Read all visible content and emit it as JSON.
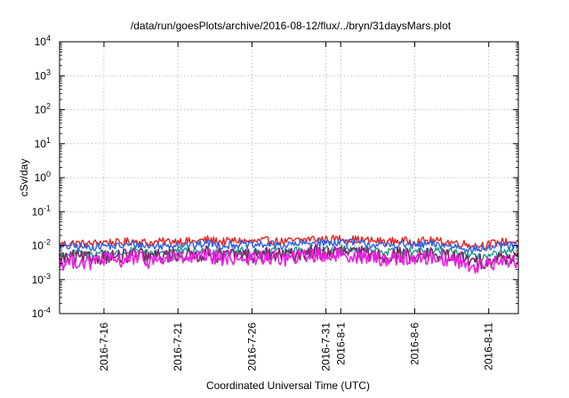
{
  "chart_data": {
    "type": "line",
    "title": "/data/run/goesPlots/archive/2016-08-12/flux/../bryn/31daysMars.plot",
    "xlabel": "Coordinated Universal Time (UTC)",
    "ylabel": "cSv/day",
    "y_scale": "log",
    "ylim": [
      0.0001,
      10000
    ],
    "y_ticks": [
      {
        "value": 0.0001,
        "base": "10",
        "exp": "-4"
      },
      {
        "value": 0.001,
        "base": "10",
        "exp": "-3"
      },
      {
        "value": 0.01,
        "base": "10",
        "exp": "-2"
      },
      {
        "value": 0.1,
        "base": "10",
        "exp": "-1"
      },
      {
        "value": 1,
        "base": "10",
        "exp": "0"
      },
      {
        "value": 10,
        "base": "10",
        "exp": "1"
      },
      {
        "value": 100,
        "base": "10",
        "exp": "2"
      },
      {
        "value": 1000,
        "base": "10",
        "exp": "3"
      },
      {
        "value": 10000,
        "base": "10",
        "exp": "4"
      }
    ],
    "xlim": [
      "2016-07-13",
      "2016-08-13"
    ],
    "x_ticks": [
      {
        "value": "2016-07-16",
        "label": "2016-7-16"
      },
      {
        "value": "2016-07-21",
        "label": "2016-7-21"
      },
      {
        "value": "2016-07-26",
        "label": "2016-7-26"
      },
      {
        "value": "2016-07-31",
        "label": "2016-7-31"
      },
      {
        "value": "2016-08-01",
        "label": "2016-8-1"
      },
      {
        "value": "2016-08-06",
        "label": "2016-8-6"
      },
      {
        "value": "2016-08-11",
        "label": "2016-8-11"
      }
    ],
    "grid": true,
    "series": [
      {
        "color": "#e8221c",
        "points": [
          [
            "2016-07-13",
            0.011
          ],
          [
            "2016-07-14",
            0.012
          ],
          [
            "2016-07-15",
            0.011
          ],
          [
            "2016-07-16",
            0.013
          ],
          [
            "2016-07-17",
            0.012
          ],
          [
            "2016-07-18",
            0.014
          ],
          [
            "2016-07-19",
            0.012
          ],
          [
            "2016-07-20",
            0.013
          ],
          [
            "2016-07-21",
            0.014
          ],
          [
            "2016-07-22",
            0.013
          ],
          [
            "2016-07-23",
            0.015
          ],
          [
            "2016-07-24",
            0.013
          ],
          [
            "2016-07-25",
            0.014
          ],
          [
            "2016-07-26",
            0.013
          ],
          [
            "2016-07-27",
            0.014
          ],
          [
            "2016-07-28",
            0.013
          ],
          [
            "2016-07-29",
            0.014
          ],
          [
            "2016-07-30",
            0.016
          ],
          [
            "2016-07-31",
            0.015
          ],
          [
            "2016-08-01",
            0.016
          ],
          [
            "2016-08-02",
            0.015
          ],
          [
            "2016-08-03",
            0.014
          ],
          [
            "2016-08-04",
            0.013
          ],
          [
            "2016-08-05",
            0.014
          ],
          [
            "2016-08-06",
            0.013
          ],
          [
            "2016-08-07",
            0.014
          ],
          [
            "2016-08-08",
            0.013
          ],
          [
            "2016-08-09",
            0.012
          ],
          [
            "2016-08-10",
            0.01
          ],
          [
            "2016-08-11",
            0.011
          ],
          [
            "2016-08-12",
            0.013
          ],
          [
            "2016-08-13",
            0.013
          ]
        ]
      },
      {
        "color": "#2a62e8",
        "points": [
          [
            "2016-07-13",
            0.009
          ],
          [
            "2016-07-14",
            0.0095
          ],
          [
            "2016-07-15",
            0.009
          ],
          [
            "2016-07-16",
            0.01
          ],
          [
            "2016-07-17",
            0.0095
          ],
          [
            "2016-07-18",
            0.011
          ],
          [
            "2016-07-19",
            0.0095
          ],
          [
            "2016-07-20",
            0.01
          ],
          [
            "2016-07-21",
            0.011
          ],
          [
            "2016-07-22",
            0.01
          ],
          [
            "2016-07-23",
            0.012
          ],
          [
            "2016-07-24",
            0.01
          ],
          [
            "2016-07-25",
            0.011
          ],
          [
            "2016-07-26",
            0.01
          ],
          [
            "2016-07-27",
            0.011
          ],
          [
            "2016-07-28",
            0.01
          ],
          [
            "2016-07-29",
            0.011
          ],
          [
            "2016-07-30",
            0.012
          ],
          [
            "2016-07-31",
            0.012
          ],
          [
            "2016-08-01",
            0.013
          ],
          [
            "2016-08-02",
            0.012
          ],
          [
            "2016-08-03",
            0.011
          ],
          [
            "2016-08-04",
            0.01
          ],
          [
            "2016-08-05",
            0.011
          ],
          [
            "2016-08-06",
            0.01
          ],
          [
            "2016-08-07",
            0.011
          ],
          [
            "2016-08-08",
            0.01
          ],
          [
            "2016-08-09",
            0.0095
          ],
          [
            "2016-08-10",
            0.0075
          ],
          [
            "2016-08-11",
            0.0085
          ],
          [
            "2016-08-12",
            0.01
          ],
          [
            "2016-08-13",
            0.01
          ]
        ]
      },
      {
        "color": "#1d9a8a",
        "points": [
          [
            "2016-07-13",
            0.0055
          ],
          [
            "2016-07-14",
            0.006
          ],
          [
            "2016-07-15",
            0.0055
          ],
          [
            "2016-07-16",
            0.0065
          ],
          [
            "2016-07-17",
            0.006
          ],
          [
            "2016-07-18",
            0.007
          ],
          [
            "2016-07-19",
            0.006
          ],
          [
            "2016-07-20",
            0.0065
          ],
          [
            "2016-07-21",
            0.007
          ],
          [
            "2016-07-22",
            0.0065
          ],
          [
            "2016-07-23",
            0.0075
          ],
          [
            "2016-07-24",
            0.0065
          ],
          [
            "2016-07-25",
            0.007
          ],
          [
            "2016-07-26",
            0.0065
          ],
          [
            "2016-07-27",
            0.007
          ],
          [
            "2016-07-28",
            0.0065
          ],
          [
            "2016-07-29",
            0.007
          ],
          [
            "2016-07-30",
            0.008
          ],
          [
            "2016-07-31",
            0.0075
          ],
          [
            "2016-08-01",
            0.008
          ],
          [
            "2016-08-02",
            0.0075
          ],
          [
            "2016-08-03",
            0.007
          ],
          [
            "2016-08-04",
            0.0065
          ],
          [
            "2016-08-05",
            0.007
          ],
          [
            "2016-08-06",
            0.0065
          ],
          [
            "2016-08-07",
            0.007
          ],
          [
            "2016-08-08",
            0.0065
          ],
          [
            "2016-08-09",
            0.006
          ],
          [
            "2016-08-10",
            0.0045
          ],
          [
            "2016-08-11",
            0.005
          ],
          [
            "2016-08-12",
            0.006
          ],
          [
            "2016-08-13",
            0.0062
          ]
        ]
      },
      {
        "color": "#7a2a6a",
        "points": [
          [
            "2016-07-13",
            0.004
          ],
          [
            "2016-07-14",
            0.0045
          ],
          [
            "2016-07-15",
            0.004
          ],
          [
            "2016-07-16",
            0.005
          ],
          [
            "2016-07-17",
            0.0045
          ],
          [
            "2016-07-18",
            0.0055
          ],
          [
            "2016-07-19",
            0.0045
          ],
          [
            "2016-07-20",
            0.005
          ],
          [
            "2016-07-21",
            0.0055
          ],
          [
            "2016-07-22",
            0.005
          ],
          [
            "2016-07-23",
            0.006
          ],
          [
            "2016-07-24",
            0.005
          ],
          [
            "2016-07-25",
            0.0055
          ],
          [
            "2016-07-26",
            0.005
          ],
          [
            "2016-07-27",
            0.0055
          ],
          [
            "2016-07-28",
            0.005
          ],
          [
            "2016-07-29",
            0.0055
          ],
          [
            "2016-07-30",
            0.0065
          ],
          [
            "2016-07-31",
            0.006
          ],
          [
            "2016-08-01",
            0.0065
          ],
          [
            "2016-08-02",
            0.006
          ],
          [
            "2016-08-03",
            0.0055
          ],
          [
            "2016-08-04",
            0.005
          ],
          [
            "2016-08-05",
            0.0055
          ],
          [
            "2016-08-06",
            0.005
          ],
          [
            "2016-08-07",
            0.0055
          ],
          [
            "2016-08-08",
            0.005
          ],
          [
            "2016-08-09",
            0.0045
          ],
          [
            "2016-08-10",
            0.0032
          ],
          [
            "2016-08-11",
            0.0036
          ],
          [
            "2016-08-12",
            0.0045
          ],
          [
            "2016-08-13",
            0.0046
          ]
        ]
      },
      {
        "color": "#ee1ce4",
        "points": [
          [
            "2016-07-13",
            0.003
          ],
          [
            "2016-07-14",
            0.0035
          ],
          [
            "2016-07-15",
            0.003
          ],
          [
            "2016-07-16",
            0.004
          ],
          [
            "2016-07-17",
            0.0035
          ],
          [
            "2016-07-18",
            0.0045
          ],
          [
            "2016-07-19",
            0.0035
          ],
          [
            "2016-07-20",
            0.004
          ],
          [
            "2016-07-21",
            0.0045
          ],
          [
            "2016-07-22",
            0.004
          ],
          [
            "2016-07-23",
            0.005
          ],
          [
            "2016-07-24",
            0.004
          ],
          [
            "2016-07-25",
            0.0045
          ],
          [
            "2016-07-26",
            0.004
          ],
          [
            "2016-07-27",
            0.0045
          ],
          [
            "2016-07-28",
            0.004
          ],
          [
            "2016-07-29",
            0.0045
          ],
          [
            "2016-07-30",
            0.0055
          ],
          [
            "2016-07-31",
            0.005
          ],
          [
            "2016-08-01",
            0.0055
          ],
          [
            "2016-08-02",
            0.005
          ],
          [
            "2016-08-03",
            0.0045
          ],
          [
            "2016-08-04",
            0.004
          ],
          [
            "2016-08-05",
            0.0045
          ],
          [
            "2016-08-06",
            0.004
          ],
          [
            "2016-08-07",
            0.0045
          ],
          [
            "2016-08-08",
            0.004
          ],
          [
            "2016-08-09",
            0.0035
          ],
          [
            "2016-08-10",
            0.0024
          ],
          [
            "2016-08-11",
            0.0028
          ],
          [
            "2016-08-12",
            0.0035
          ],
          [
            "2016-08-13",
            0.0036
          ]
        ]
      }
    ]
  }
}
